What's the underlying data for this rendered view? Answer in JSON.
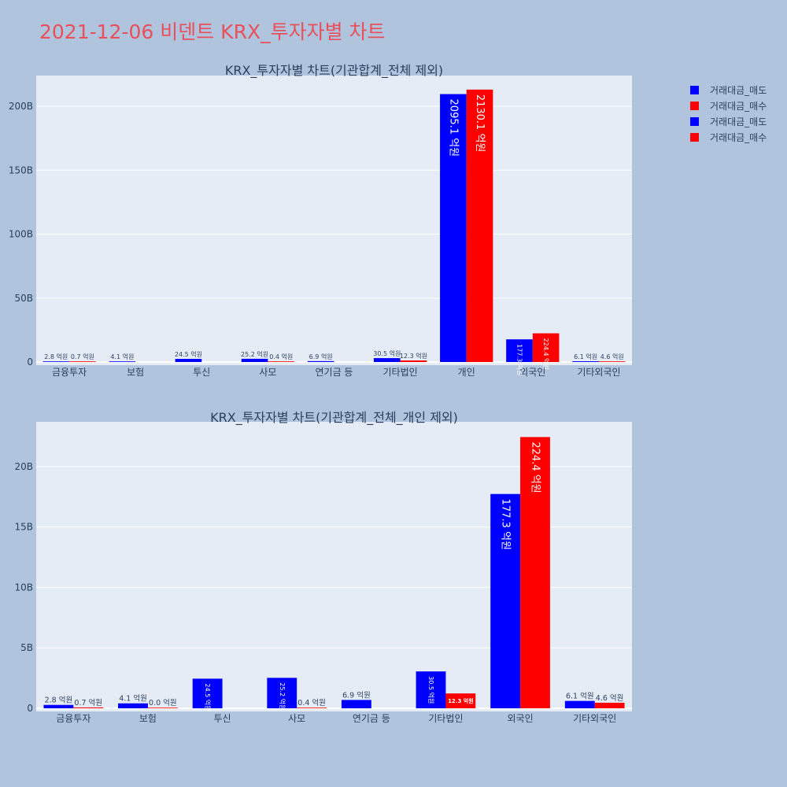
{
  "page_title": "2021-12-06 비덴트 KRX_투자자별 차트",
  "colors": {
    "sell": "#0000ff",
    "buy": "#ff0000",
    "plot_bg": "#e5ecf6",
    "page_bg": "#b0c4de",
    "title": "#e8505b"
  },
  "legend": {
    "placement": "top-right",
    "items": [
      {
        "label": "거래대금_매도",
        "color": "#0000ff"
      },
      {
        "label": "거래대금_매수",
        "color": "#ff0000"
      },
      {
        "label": "거래대금_매도",
        "color": "#0000ff"
      },
      {
        "label": "거래대금_매수",
        "color": "#ff0000"
      }
    ]
  },
  "chart_data": [
    {
      "type": "bar",
      "title": "KRX_투자자별 차트(기관합계_전체 제외)",
      "xlabel": "",
      "ylabel": "",
      "categories": [
        "금융투자",
        "보험",
        "투신",
        "사모",
        "연기금 등",
        "기타법인",
        "개인",
        "외국인",
        "기타외국인"
      ],
      "ylim": [
        0,
        224
      ],
      "yticks": [
        0,
        50,
        100,
        150,
        200
      ],
      "ytick_labels": [
        "0",
        "50B",
        "100B",
        "150B",
        "200B"
      ],
      "grid": true,
      "series": [
        {
          "name": "거래대금_매도",
          "color": "#0000ff",
          "values": [
            0.28,
            0.41,
            2.45,
            2.52,
            0.69,
            3.05,
            209.51,
            17.73,
            0.61
          ],
          "labels": [
            "2.8 억원",
            "4.1 억원",
            "24.5 억원",
            "25.2 억원",
            "6.9 억원",
            "30.5 억원",
            "2095.1 억원",
            "177.3 억원",
            "6.1 억원"
          ]
        },
        {
          "name": "거래대금_매수",
          "color": "#ff0000",
          "values": [
            0.07,
            null,
            null,
            0.04,
            null,
            1.23,
            213.01,
            22.44,
            0.46
          ],
          "labels": [
            "0.7 억원",
            "",
            "",
            "0.4 억원",
            "",
            "12.3 억원",
            "2130.1 억원",
            "224.4 억원",
            "4.6 억원"
          ]
        }
      ]
    },
    {
      "type": "bar",
      "title": "KRX_투자자별 차트(기관합계_전체_개인 제외)",
      "xlabel": "",
      "ylabel": "",
      "categories": [
        "금융투자",
        "보험",
        "투신",
        "사모",
        "연기금 등",
        "기타법인",
        "외국인",
        "기타외국인"
      ],
      "ylim": [
        0,
        23.7
      ],
      "yticks": [
        0,
        5,
        10,
        15,
        20
      ],
      "ytick_labels": [
        "0",
        "5B",
        "10B",
        "15B",
        "20B"
      ],
      "grid": true,
      "series": [
        {
          "name": "거래대금_매도",
          "color": "#0000ff",
          "values": [
            0.28,
            0.41,
            2.45,
            2.52,
            0.69,
            3.05,
            17.73,
            0.61
          ],
          "labels": [
            "2.8 억원",
            "4.1 억원",
            "24.5 억원",
            "25.2 억원",
            "6.9 억원",
            "30.5 억원",
            "177.3 억원",
            "6.1 억원"
          ]
        },
        {
          "name": "거래대금_매수",
          "color": "#ff0000",
          "values": [
            0.07,
            0.0,
            null,
            0.04,
            null,
            1.23,
            22.44,
            0.46
          ],
          "labels": [
            "0.7 억원",
            "0.0 억원",
            "",
            "0.4 억원",
            "",
            "12.3 억원",
            "224.4 억원",
            "4.6 억원"
          ]
        }
      ]
    }
  ]
}
